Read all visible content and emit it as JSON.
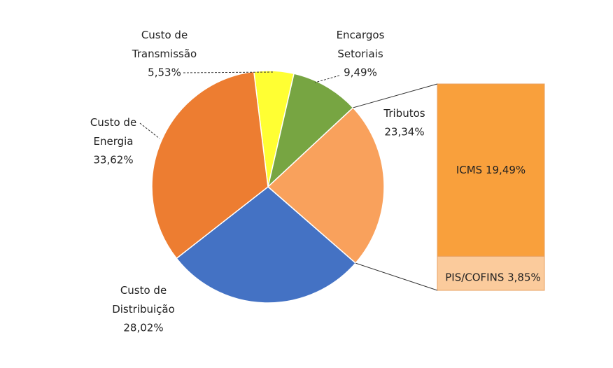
{
  "chart_data": {
    "type": "pie-of-bar",
    "categories": [
      "Custo de Transmissão",
      "Encargos Setoriais",
      "Tributos",
      "Custo de Distribuição",
      "Custo de Energia"
    ],
    "values": [
      5.53,
      9.49,
      23.34,
      28.02,
      33.62
    ],
    "value_labels": [
      "5,53%",
      "9,49%",
      "23,34%",
      "28,02%",
      "33,62%"
    ],
    "colors": [
      "#ffff33",
      "#77a542",
      "#f9a15c",
      "#4472c4",
      "#ed7d31"
    ],
    "breakdown": {
      "categories": [
        "ICMS",
        "PIS/COFINS"
      ],
      "values": [
        19.49,
        3.85
      ],
      "value_labels": [
        "19,49%",
        "3,85%"
      ],
      "colors": [
        "#f9a03c",
        "#fbcb9c"
      ]
    }
  }
}
